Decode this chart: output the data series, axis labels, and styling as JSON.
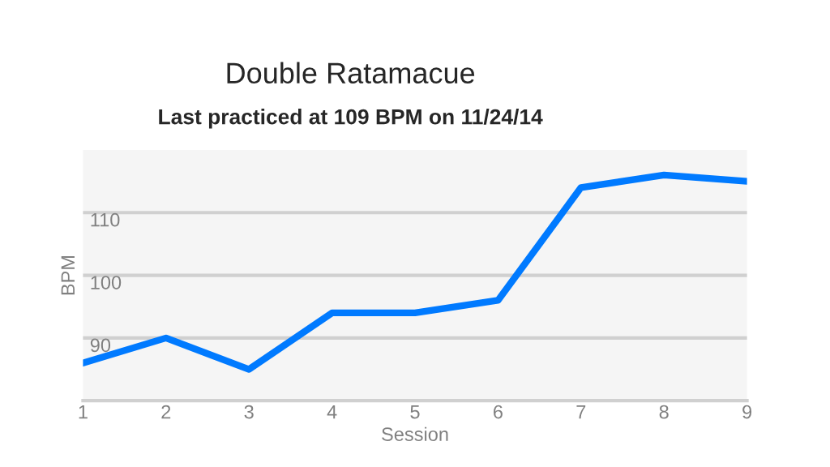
{
  "chart_data": {
    "type": "line",
    "title": "Double Ratamacue",
    "subtitle": "Last practiced at 109 BPM on 11/24/14",
    "xlabel": "Session",
    "ylabel": "BPM",
    "x": [
      1,
      2,
      3,
      4,
      5,
      6,
      7,
      8,
      9
    ],
    "series": [
      {
        "color": "#007aff",
        "values": [
          86,
          90,
          85,
          94,
          94,
          96,
          114,
          116,
          115
        ]
      }
    ],
    "xlim": [
      1,
      9
    ],
    "xticks": [
      1,
      2,
      3,
      4,
      5,
      6,
      7,
      8,
      9
    ],
    "ylim": [
      80,
      120
    ],
    "yticks": [
      90,
      100,
      110
    ],
    "grid": "y",
    "marker": "none",
    "line_style": "solid"
  }
}
